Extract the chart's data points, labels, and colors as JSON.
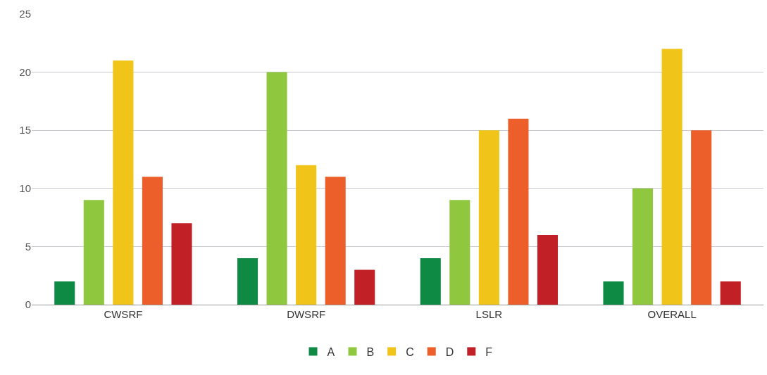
{
  "chart_data": {
    "type": "bar",
    "categories": [
      "CWSRF",
      "DWSRF",
      "LSLR",
      "OVERALL"
    ],
    "series": [
      {
        "name": "A",
        "color": "#0f8a45",
        "values": [
          2,
          4,
          4,
          2
        ]
      },
      {
        "name": "B",
        "color": "#8fc73e",
        "values": [
          9,
          20,
          9,
          10
        ]
      },
      {
        "name": "C",
        "color": "#f0c419",
        "values": [
          21,
          12,
          15,
          22
        ]
      },
      {
        "name": "D",
        "color": "#ec5f2a",
        "values": [
          11,
          11,
          16,
          15
        ]
      },
      {
        "name": "F",
        "color": "#c02026",
        "values": [
          7,
          3,
          6,
          2
        ]
      }
    ],
    "ylim": [
      0,
      25
    ],
    "yticks": [
      0,
      5,
      10,
      15,
      20,
      25
    ],
    "grid": "y",
    "legend": "bottom"
  }
}
